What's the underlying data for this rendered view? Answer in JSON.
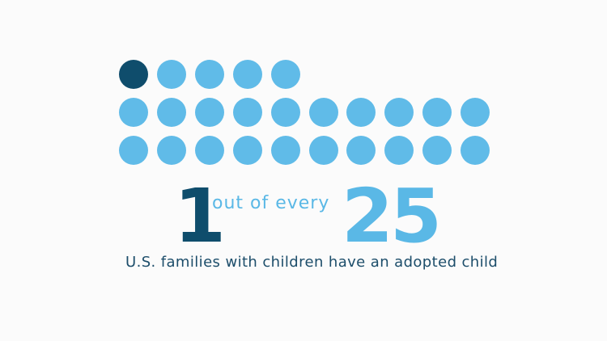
{
  "chart_data": {
    "type": "pictograph",
    "highlighted": 1,
    "total": 25,
    "highlight_color": "#0f4d6c",
    "base_color": "#60bbe8"
  },
  "headline": {
    "count": "1",
    "connector": "out of every",
    "total": "25"
  },
  "caption": "U.S. families with children have an adopted child"
}
